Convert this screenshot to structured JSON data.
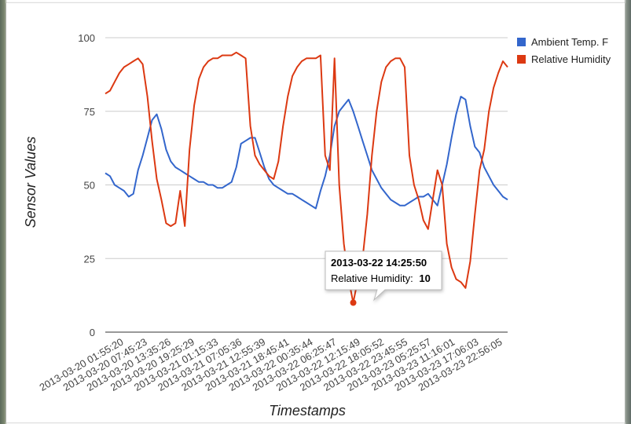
{
  "chart_data": {
    "type": "line",
    "title": "",
    "xlabel": "Timestamps",
    "ylabel": "Sensor Values",
    "ylim": [
      0,
      100
    ],
    "yticks": [
      "0",
      "25",
      "50",
      "75",
      "100"
    ],
    "x_tick_labels": [
      "2013-03-20 01:55:20",
      "2013-03-20 07:45:23",
      "2013-03-20 13:35:26",
      "2013-03-20 19:25:29",
      "2013-03-21 01:15:33",
      "2013-03-21 07:05:36",
      "2013-03-21 12:55:39",
      "2013-03-21 18:45:41",
      "2013-03-22 00:35:44",
      "2013-03-22 06:25:47",
      "2013-03-22 12:15:49",
      "2013-03-22 18:05:52",
      "2013-03-22 23:45:55",
      "2013-03-23 05:25:57",
      "2013-03-23 11:16:01",
      "2013-03-23 17:06:03",
      "2013-03-23 22:56:05"
    ],
    "grid": true,
    "legend_position": "right",
    "series": [
      {
        "name": "Ambient Temp. F",
        "color": "#3366cc",
        "values": [
          54,
          53,
          50,
          49,
          48,
          46,
          47,
          55,
          60,
          66,
          72,
          74,
          69,
          62,
          58,
          56,
          55,
          54,
          53,
          52,
          51,
          51,
          50,
          50,
          49,
          49,
          50,
          51,
          56,
          64,
          65,
          66,
          66,
          61,
          56,
          52,
          50,
          49,
          48,
          47,
          47,
          46,
          45,
          44,
          43,
          42,
          48,
          53,
          60,
          70,
          75,
          77,
          79,
          75,
          70,
          65,
          60,
          55,
          52,
          49,
          47,
          45,
          44,
          43,
          43,
          44,
          45,
          46,
          46,
          47,
          45,
          43,
          50,
          57,
          66,
          74,
          80,
          79,
          70,
          63,
          61,
          56,
          53,
          50,
          48,
          46,
          45
        ]
      },
      {
        "name": "Relative Humidity",
        "color": "#dc3912",
        "values": [
          81,
          82,
          85,
          88,
          90,
          91,
          92,
          93,
          91,
          80,
          65,
          52,
          45,
          37,
          36,
          37,
          48,
          36,
          62,
          77,
          86,
          90,
          92,
          93,
          93,
          94,
          94,
          94,
          95,
          94,
          93,
          70,
          60,
          57,
          55,
          53,
          52,
          58,
          70,
          80,
          87,
          90,
          92,
          93,
          93,
          93,
          94,
          60,
          55,
          93,
          50,
          30,
          18,
          10,
          18,
          25,
          40,
          60,
          75,
          85,
          90,
          92,
          93,
          93,
          90,
          60,
          50,
          45,
          38,
          35,
          45,
          55,
          50,
          30,
          22,
          18,
          17,
          15,
          24,
          40,
          55,
          62,
          75,
          83,
          88,
          92,
          90
        ]
      }
    ],
    "tooltip": {
      "title": "2013-03-22 14:25:50",
      "label": "Relative Humidity:",
      "value": "10",
      "series_index": 1,
      "point_index": 53
    }
  }
}
